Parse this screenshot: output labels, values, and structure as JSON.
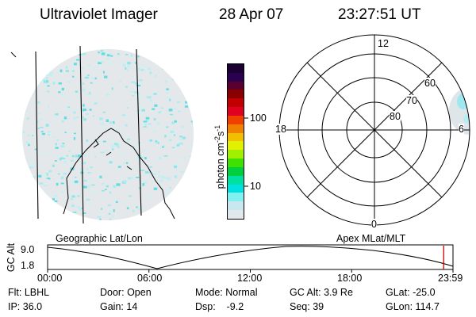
{
  "header": {
    "instrument": "Ultraviolet Imager",
    "date": "28 Apr 07",
    "time": "23:27:51 UT"
  },
  "colorbar": {
    "label": "photon cm",
    "exp1": "-2",
    "s": "s",
    "exp2": "-1",
    "ticks": [
      "100",
      "10"
    ],
    "colors": [
      "#1a0033",
      "#2a0050",
      "#5a0030",
      "#8a0000",
      "#c00000",
      "#e00020",
      "#f04000",
      "#f08000",
      "#f0c000",
      "#e0f000",
      "#a0f000",
      "#40e000",
      "#00d040",
      "#00e0a0",
      "#00e0e0",
      "#80f0f0",
      "#c8e8f0",
      "#e0e8ec"
    ]
  },
  "polar": {
    "mlt_labels": [
      "12",
      "18",
      "6",
      "0"
    ],
    "lat_labels": [
      "60",
      "70",
      "80"
    ]
  },
  "timeline": {
    "left_label": "Geographic Lat/Lon",
    "right_label": "Apex MLat/MLT",
    "ylabel": "GC Alt",
    "ymax": "9.0",
    "ymin": "1.8",
    "xticks": [
      "00:00",
      "06:00",
      "12:00",
      "18:00",
      "23:59"
    ],
    "marker_time_fraction": 0.977
  },
  "info": {
    "flt_label": "Flt:",
    "flt_value": "LBHL",
    "ip_label": "IP:",
    "ip_value": "36.0",
    "door_label": "Door:",
    "door_value": "Open",
    "gain_label": "Gain:",
    "gain_value": "14",
    "mode_label": "Mode:",
    "mode_value": "Normal",
    "dsp_label": "Dsp:",
    "dsp_value": "-9.2",
    "gcalt_label": "GC Alt:",
    "gcalt_value": "3.9 Re",
    "seq_label": "Seq:",
    "seq_value": "39",
    "glat_label": "GLat:",
    "glat_value": "-25.0",
    "glon_label": "GLon:",
    "glon_value": "114.7"
  }
}
